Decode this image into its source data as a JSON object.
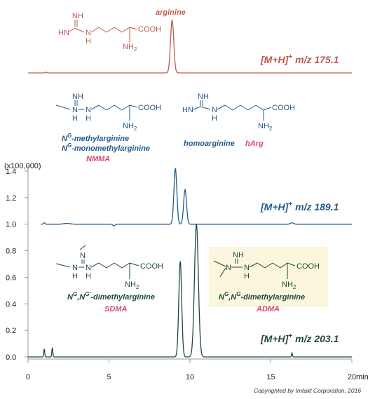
{
  "chart_data": {
    "type": "line",
    "x_unit": "min",
    "y_unit": "(x100,000)",
    "xlim": [
      0,
      20
    ],
    "ylim": [
      0,
      1.4
    ],
    "x_ticks": [
      "0",
      "5",
      "10",
      "15",
      "20"
    ],
    "y_ticks": [
      "0.0",
      "0.2",
      "0.4",
      "0.6",
      "0.8",
      "1.0",
      "1.2",
      "1.4"
    ],
    "series": [
      {
        "name": "[M+H]+ m/z 175.1",
        "mz_label": "m/z 175.1",
        "color": "#c05a50",
        "peaks": [
          {
            "compound": "arginine",
            "time": 8.9,
            "height": 1.0
          }
        ]
      },
      {
        "name": "[M+H]+ m/z 189.1",
        "mz_label": "m/z 189.1",
        "color": "#245a8a",
        "peaks": [
          {
            "compound": "NMMA",
            "time": 9.1,
            "height": 1.42
          },
          {
            "compound": "homoarginine hArg",
            "time": 9.7,
            "height": 1.26
          },
          {
            "compound": "",
            "time": 16.3,
            "height": 1.01
          }
        ]
      },
      {
        "name": "[M+H]+ m/z 203.1",
        "mz_label": "m/z 203.1",
        "color": "#1e4b3a",
        "peaks": [
          {
            "compound": "SDMA",
            "time": 9.4,
            "height": 0.72
          },
          {
            "compound": "ADMA",
            "time": 10.4,
            "height": 1.0
          },
          {
            "compound": "",
            "time": 1.0,
            "height": 0.06
          },
          {
            "compound": "",
            "time": 1.5,
            "height": 0.07
          },
          {
            "compound": "",
            "time": 16.3,
            "height": 0.03
          }
        ]
      }
    ]
  },
  "labels": {
    "mh": "[M+H]",
    "plus": "+",
    "arginine": "arginine",
    "nmma_line1_a": "N",
    "nmma_line1_sup": "G",
    "nmma_line1_b": "-methylarginine",
    "nmma_line2_a": "N",
    "nmma_line2_sup": "G",
    "nmma_line2_b": "-monomethylarginine",
    "nmma_abbr": "NMMA",
    "homoarginine": "homoarginine",
    "harg": "hArg",
    "sdma_full_a": "N",
    "sdma_full_sup1": "G",
    "sdma_full_b": ",N",
    "sdma_full_sup2": "G'",
    "sdma_full_c": "-dimethylarginine",
    "sdma_abbr": "SDMA",
    "adma_full_a": "N",
    "adma_full_sup1": "G",
    "adma_full_b": ",N",
    "adma_full_sup2": "G",
    "adma_full_c": "-dimethylarginine",
    "adma_abbr": "ADMA",
    "copyright": "Copyrighted by Imtakt Corporation, 2016"
  },
  "struct_text": {
    "NH": "NH",
    "HN": "HN",
    "N": "N",
    "H": "H",
    "COOH": "COOH",
    "NH2": "NH",
    "sub2": "2"
  },
  "colors": {
    "arginine": "#c05a50",
    "blue": "#245a8a",
    "green": "#1e4b3a",
    "pink": "#d8457a",
    "highlight": "#fbf6dc"
  }
}
